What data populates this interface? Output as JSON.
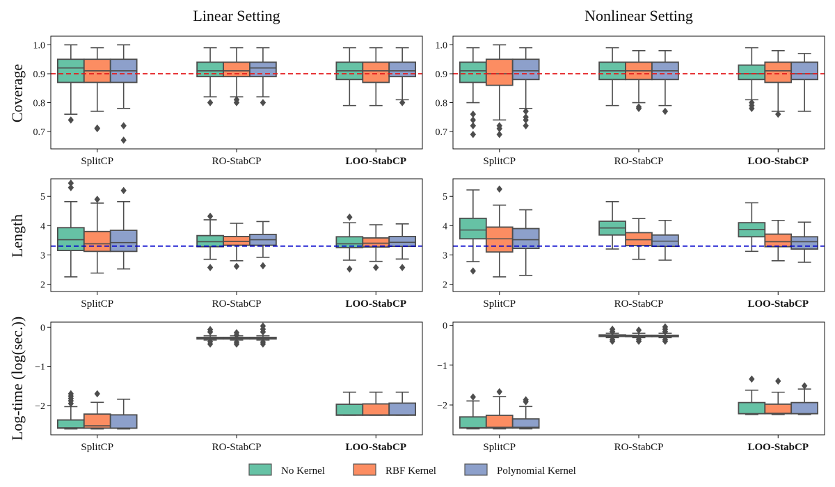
{
  "column_titles": [
    "Linear Setting",
    "Nonlinear Setting"
  ],
  "row_labels": [
    "Coverage",
    "Length",
    "Log-time (log(sec.))"
  ],
  "legend": [
    {
      "name": "No Kernel",
      "color": "#66c2a5"
    },
    {
      "name": "RBF Kernel",
      "color": "#fc8d62"
    },
    {
      "name": "Polynomial Kernel",
      "color": "#8da0cb"
    }
  ],
  "chart_data": [
    {
      "type": "box",
      "title": "Linear Setting",
      "ylabel": "Coverage",
      "categories": [
        "SplitCP",
        "RO-StabCP",
        "LOO-StabCP"
      ],
      "bold_category": "LOO-StabCP",
      "ylim": [
        0.64,
        1.03
      ],
      "yticks": [
        0.7,
        0.8,
        0.9,
        1.0
      ],
      "yticklabels": [
        "0.7",
        "0.8",
        "0.9",
        "1.0"
      ],
      "reference_line": {
        "y": 0.9,
        "color": "#e41a1c"
      },
      "series": [
        {
          "name": "No Kernel",
          "boxes": [
            {
              "q1": 0.87,
              "med": 0.92,
              "q3": 0.95,
              "lo": 0.76,
              "hi": 1.0,
              "fliers": [
                0.74
              ]
            },
            {
              "q1": 0.89,
              "med": 0.91,
              "q3": 0.94,
              "lo": 0.82,
              "hi": 0.99,
              "fliers": [
                0.8
              ]
            },
            {
              "q1": 0.88,
              "med": 0.91,
              "q3": 0.94,
              "lo": 0.79,
              "hi": 0.99,
              "fliers": []
            }
          ]
        },
        {
          "name": "RBF Kernel",
          "boxes": [
            {
              "q1": 0.87,
              "med": 0.91,
              "q3": 0.95,
              "lo": 0.77,
              "hi": 0.99,
              "fliers": [
                0.71,
                0.712
              ]
            },
            {
              "q1": 0.89,
              "med": 0.91,
              "q3": 0.94,
              "lo": 0.82,
              "hi": 0.99,
              "fliers": [
                0.8,
                0.81
              ]
            },
            {
              "q1": 0.87,
              "med": 0.91,
              "q3": 0.94,
              "lo": 0.79,
              "hi": 0.99,
              "fliers": []
            }
          ]
        },
        {
          "name": "Polynomial Kernel",
          "boxes": [
            {
              "q1": 0.87,
              "med": 0.91,
              "q3": 0.95,
              "lo": 0.78,
              "hi": 1.0,
              "fliers": [
                0.72,
                0.67
              ]
            },
            {
              "q1": 0.89,
              "med": 0.92,
              "q3": 0.94,
              "lo": 0.82,
              "hi": 0.99,
              "fliers": [
                0.8
              ]
            },
            {
              "q1": 0.89,
              "med": 0.91,
              "q3": 0.94,
              "lo": 0.81,
              "hi": 0.99,
              "fliers": [
                0.8
              ]
            }
          ]
        }
      ]
    },
    {
      "type": "box",
      "title": "Nonlinear Setting",
      "ylabel": "Coverage",
      "categories": [
        "SplitCP",
        "RO-StabCP",
        "LOO-StabCP"
      ],
      "bold_category": "LOO-StabCP",
      "ylim": [
        0.64,
        1.03
      ],
      "yticks": [
        0.7,
        0.8,
        0.9,
        1.0
      ],
      "yticklabels": [
        "0.7",
        "0.8",
        "0.9",
        "1.0"
      ],
      "reference_line": {
        "y": 0.9,
        "color": "#e41a1c"
      },
      "series": [
        {
          "name": "No Kernel",
          "boxes": [
            {
              "q1": 0.87,
              "med": 0.91,
              "q3": 0.94,
              "lo": 0.8,
              "hi": 0.99,
              "fliers": [
                0.76,
                0.74,
                0.72,
                0.69
              ]
            },
            {
              "q1": 0.88,
              "med": 0.91,
              "q3": 0.94,
              "lo": 0.79,
              "hi": 0.99,
              "fliers": []
            },
            {
              "q1": 0.88,
              "med": 0.9,
              "q3": 0.93,
              "lo": 0.81,
              "hi": 0.99,
              "fliers": [
                0.8,
                0.79,
                0.78
              ]
            }
          ]
        },
        {
          "name": "RBF Kernel",
          "boxes": [
            {
              "q1": 0.86,
              "med": 0.9,
              "q3": 0.95,
              "lo": 0.74,
              "hi": 1.0,
              "fliers": [
                0.72,
                0.71,
                0.69
              ]
            },
            {
              "q1": 0.88,
              "med": 0.91,
              "q3": 0.94,
              "lo": 0.8,
              "hi": 0.98,
              "fliers": [
                0.78,
                0.785
              ]
            },
            {
              "q1": 0.87,
              "med": 0.91,
              "q3": 0.94,
              "lo": 0.77,
              "hi": 0.98,
              "fliers": [
                0.76
              ]
            }
          ]
        },
        {
          "name": "Polynomial Kernel",
          "boxes": [
            {
              "q1": 0.88,
              "med": 0.91,
              "q3": 0.95,
              "lo": 0.78,
              "hi": 0.99,
              "fliers": [
                0.77,
                0.75,
                0.74,
                0.72
              ]
            },
            {
              "q1": 0.88,
              "med": 0.91,
              "q3": 0.94,
              "lo": 0.79,
              "hi": 0.98,
              "fliers": [
                0.77
              ]
            },
            {
              "q1": 0.88,
              "med": 0.9,
              "q3": 0.94,
              "lo": 0.77,
              "hi": 0.97,
              "fliers": []
            }
          ]
        }
      ]
    },
    {
      "type": "box",
      "title": "Linear Setting",
      "ylabel": "Length",
      "categories": [
        "SplitCP",
        "RO-StabCP",
        "LOO-StabCP"
      ],
      "bold_category": "LOO-StabCP",
      "ylim": [
        1.75,
        5.6
      ],
      "yticks": [
        2,
        3,
        4,
        5
      ],
      "yticklabels": [
        "2",
        "3",
        "4",
        "5"
      ],
      "reference_line": {
        "y": 3.3,
        "color": "#0000cc"
      },
      "series": [
        {
          "name": "No Kernel",
          "boxes": [
            {
              "q1": 3.15,
              "med": 3.52,
              "q3": 3.93,
              "lo": 2.25,
              "hi": 4.82,
              "fliers": [
                5.3,
                5.45
              ]
            },
            {
              "q1": 3.28,
              "med": 3.45,
              "q3": 3.66,
              "lo": 2.85,
              "hi": 4.2,
              "fliers": [
                2.57,
                4.32
              ]
            },
            {
              "q1": 3.25,
              "med": 3.38,
              "q3": 3.62,
              "lo": 2.82,
              "hi": 4.1,
              "fliers": [
                2.52,
                4.29
              ]
            }
          ]
        },
        {
          "name": "RBF Kernel",
          "boxes": [
            {
              "q1": 3.12,
              "med": 3.38,
              "q3": 3.8,
              "lo": 2.38,
              "hi": 4.77,
              "fliers": [
                4.9
              ]
            },
            {
              "q1": 3.33,
              "med": 3.46,
              "q3": 3.63,
              "lo": 2.8,
              "hi": 4.08,
              "fliers": [
                2.61
              ]
            },
            {
              "q1": 3.27,
              "med": 3.4,
              "q3": 3.58,
              "lo": 2.78,
              "hi": 4.03,
              "fliers": [
                2.57
              ]
            }
          ]
        },
        {
          "name": "Polynomial Kernel",
          "boxes": [
            {
              "q1": 3.12,
              "med": 3.42,
              "q3": 3.84,
              "lo": 2.52,
              "hi": 4.82,
              "fliers": [
                5.2
              ]
            },
            {
              "q1": 3.33,
              "med": 3.52,
              "q3": 3.7,
              "lo": 2.92,
              "hi": 4.14,
              "fliers": [
                2.63
              ]
            },
            {
              "q1": 3.29,
              "med": 3.43,
              "q3": 3.63,
              "lo": 2.86,
              "hi": 4.06,
              "fliers": [
                2.57
              ]
            }
          ]
        }
      ]
    },
    {
      "type": "box",
      "title": "Nonlinear Setting",
      "ylabel": "Length",
      "categories": [
        "SplitCP",
        "RO-StabCP",
        "LOO-StabCP"
      ],
      "bold_category": "LOO-StabCP",
      "ylim": [
        1.75,
        5.6
      ],
      "yticks": [
        2,
        3,
        4,
        5
      ],
      "yticklabels": [
        "2",
        "3",
        "4",
        "5"
      ],
      "reference_line": {
        "y": 3.3,
        "color": "#0000cc"
      },
      "series": [
        {
          "name": "No Kernel",
          "boxes": [
            {
              "q1": 3.55,
              "med": 3.85,
              "q3": 4.25,
              "lo": 2.77,
              "hi": 5.22,
              "fliers": [
                2.45
              ]
            },
            {
              "q1": 3.68,
              "med": 3.92,
              "q3": 4.15,
              "lo": 3.2,
              "hi": 4.82,
              "fliers": []
            },
            {
              "q1": 3.62,
              "med": 3.87,
              "q3": 4.1,
              "lo": 3.12,
              "hi": 4.78,
              "fliers": []
            }
          ]
        },
        {
          "name": "RBF Kernel",
          "boxes": [
            {
              "q1": 3.1,
              "med": 3.55,
              "q3": 3.95,
              "lo": 2.25,
              "hi": 4.7,
              "fliers": [
                5.25
              ]
            },
            {
              "q1": 3.32,
              "med": 3.52,
              "q3": 3.76,
              "lo": 2.85,
              "hi": 4.24,
              "fliers": []
            },
            {
              "q1": 3.28,
              "med": 3.45,
              "q3": 3.71,
              "lo": 2.8,
              "hi": 4.18,
              "fliers": []
            }
          ]
        },
        {
          "name": "Polynomial Kernel",
          "boxes": [
            {
              "q1": 3.22,
              "med": 3.52,
              "q3": 3.9,
              "lo": 2.3,
              "hi": 4.54,
              "fliers": []
            },
            {
              "q1": 3.29,
              "med": 3.47,
              "q3": 3.68,
              "lo": 2.82,
              "hi": 4.18,
              "fliers": []
            },
            {
              "q1": 3.2,
              "med": 3.45,
              "q3": 3.62,
              "lo": 2.75,
              "hi": 4.12,
              "fliers": []
            }
          ]
        }
      ]
    },
    {
      "type": "box",
      "title": "Linear Setting",
      "ylabel": "Log-time (log(sec.))",
      "categories": [
        "SplitCP",
        "RO-StabCP",
        "LOO-StabCP"
      ],
      "bold_category": "LOO-StabCP",
      "ylim": [
        -2.75,
        0.13
      ],
      "yticks": [
        -2,
        -1,
        0
      ],
      "yticklabels": [
        "−2",
        "−1",
        "0"
      ],
      "series": [
        {
          "name": "No Kernel",
          "boxes": [
            {
              "q1": -2.58,
              "med": -2.57,
              "q3": -2.37,
              "lo": -2.6,
              "hi": -2.03,
              "fliers": [
                -1.7,
                -1.76,
                -1.82,
                -1.88,
                -1.95
              ]
            },
            {
              "q1": -0.3,
              "med": -0.28,
              "q3": -0.26,
              "lo": -0.33,
              "hi": -0.22,
              "fliers": [
                -0.06,
                -0.12,
                -0.37,
                -0.43
              ]
            },
            {
              "q1": -2.25,
              "med": -2.24,
              "q3": -1.97,
              "lo": -2.25,
              "hi": -1.66,
              "fliers": []
            }
          ]
        },
        {
          "name": "RBF Kernel",
          "boxes": [
            {
              "q1": -2.58,
              "med": -2.52,
              "q3": -2.22,
              "lo": -2.6,
              "hi": -1.92,
              "fliers": [
                -1.7
              ]
            },
            {
              "q1": -0.3,
              "med": -0.28,
              "q3": -0.26,
              "lo": -0.33,
              "hi": -0.22,
              "fliers": [
                -0.14,
                -0.2,
                -0.38,
                -0.43
              ]
            },
            {
              "q1": -2.25,
              "med": -2.24,
              "q3": -1.96,
              "lo": -2.25,
              "hi": -1.66,
              "fliers": []
            }
          ]
        },
        {
          "name": "Polynomial Kernel",
          "boxes": [
            {
              "q1": -2.58,
              "med": -2.58,
              "q3": -2.24,
              "lo": -2.6,
              "hi": -1.84,
              "fliers": []
            },
            {
              "q1": -0.3,
              "med": -0.28,
              "q3": -0.26,
              "lo": -0.33,
              "hi": -0.22,
              "fliers": [
                0.03,
                -0.05,
                -0.12,
                -0.38,
                -0.43
              ]
            },
            {
              "q1": -2.25,
              "med": -2.24,
              "q3": -1.94,
              "lo": -2.25,
              "hi": -1.66,
              "fliers": []
            }
          ]
        }
      ]
    },
    {
      "type": "box",
      "title": "Nonlinear Setting",
      "ylabel": "Log-time (log(sec.))",
      "categories": [
        "SplitCP",
        "RO-StabCP",
        "LOO-StabCP"
      ],
      "bold_category": "LOO-StabCP",
      "ylim": [
        -2.75,
        0.08
      ],
      "yticks": [
        -2,
        -1,
        0
      ],
      "yticklabels": [
        "−2",
        "−1",
        "0"
      ],
      "series": [
        {
          "name": "No Kernel",
          "boxes": [
            {
              "q1": -2.58,
              "med": -2.57,
              "q3": -2.3,
              "lo": -2.6,
              "hi": -1.9,
              "fliers": [
                -1.8
              ]
            },
            {
              "q1": -0.28,
              "med": -0.26,
              "q3": -0.24,
              "lo": -0.31,
              "hi": -0.2,
              "fliers": [
                -0.1,
                -0.16,
                -0.36,
                -0.4
              ]
            },
            {
              "q1": -2.22,
              "med": -2.22,
              "q3": -1.94,
              "lo": -2.24,
              "hi": -1.63,
              "fliers": [
                -1.35
              ]
            }
          ]
        },
        {
          "name": "RBF Kernel",
          "boxes": [
            {
              "q1": -2.58,
              "med": -2.56,
              "q3": -2.26,
              "lo": -2.6,
              "hi": -1.79,
              "fliers": [
                -1.67
              ]
            },
            {
              "q1": -0.28,
              "med": -0.27,
              "q3": -0.25,
              "lo": -0.31,
              "hi": -0.2,
              "fliers": [
                -0.12,
                -0.35,
                -0.4
              ]
            },
            {
              "q1": -2.22,
              "med": -2.21,
              "q3": -1.98,
              "lo": -2.24,
              "hi": -1.68,
              "fliers": [
                -1.4
              ]
            }
          ]
        },
        {
          "name": "Polynomial Kernel",
          "boxes": [
            {
              "q1": -2.58,
              "med": -2.56,
              "q3": -2.35,
              "lo": -2.6,
              "hi": -2.04,
              "fliers": [
                -1.87,
                -1.92
              ]
            },
            {
              "q1": -0.28,
              "med": -0.27,
              "q3": -0.25,
              "lo": -0.31,
              "hi": -0.2,
              "fliers": [
                -0.04,
                -0.1,
                -0.16,
                -0.36,
                -0.4
              ]
            },
            {
              "q1": -2.22,
              "med": -2.22,
              "q3": -1.94,
              "lo": -2.24,
              "hi": -1.6,
              "fliers": [
                -1.52
              ]
            }
          ]
        }
      ]
    }
  ]
}
